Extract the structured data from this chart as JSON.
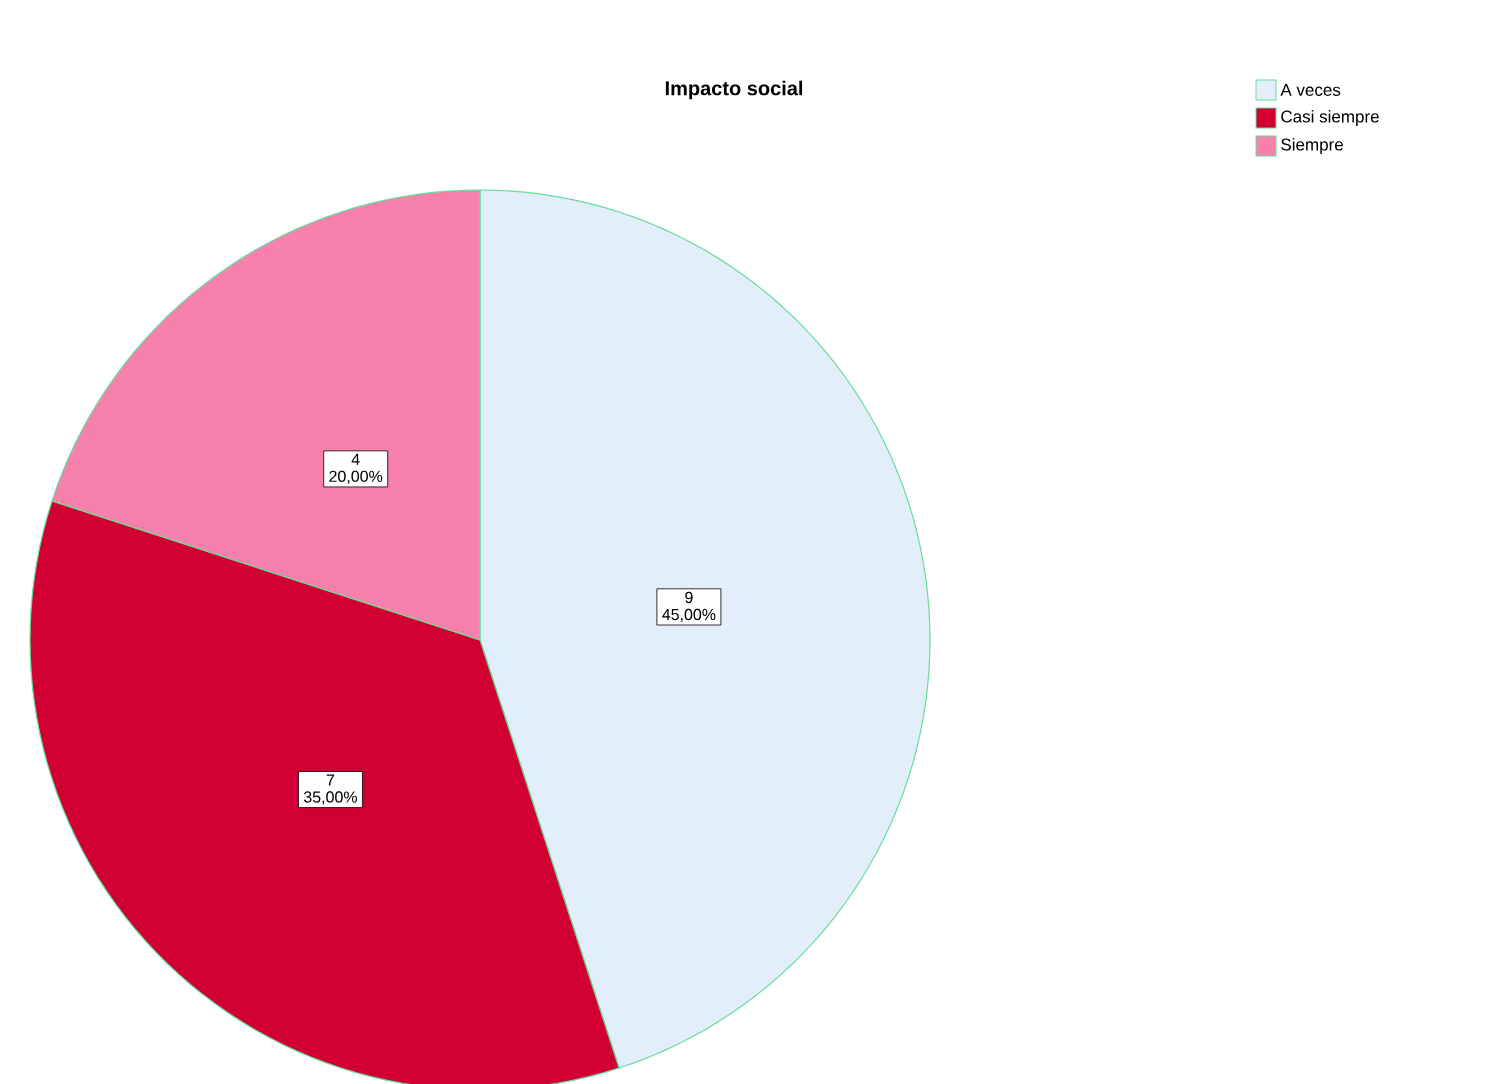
{
  "chart_data": {
    "type": "pie",
    "title": "Impacto social",
    "categories": [
      "A veces",
      "Casi siempre",
      "Siempre"
    ],
    "values": [
      45,
      35,
      20
    ],
    "colors": [
      "#e3eefb",
      "#d20032",
      "#f880ac"
    ],
    "value_labels": [
      "9\n45,00%",
      "7\n35,00%",
      "4\n20,00%"
    ],
    "legend": "top right"
  }
}
